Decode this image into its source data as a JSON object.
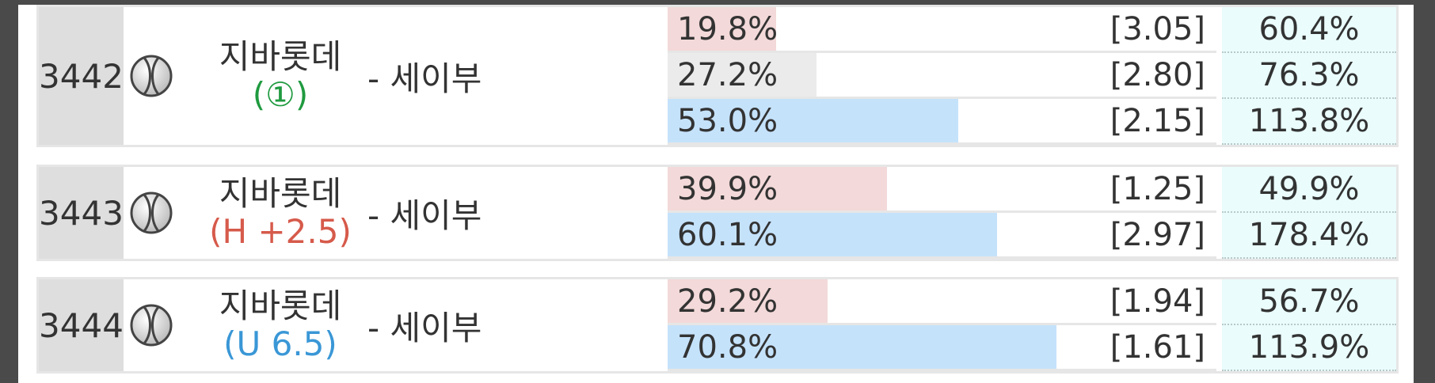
{
  "games": [
    {
      "id": "3442",
      "home": "지바롯데",
      "tag": "(①)",
      "tag_color": "#1f9a3f",
      "away": "- 세이부",
      "outcomes": [
        {
          "pct": 19.8,
          "pct_label": "19.8%",
          "color": "#f3d9d9",
          "odds": "[3.05]",
          "return": "60.4%"
        },
        {
          "pct": 27.2,
          "pct_label": "27.2%",
          "color": "#ebebeb",
          "odds": "[2.80]",
          "return": "76.3%"
        },
        {
          "pct": 53.0,
          "pct_label": "53.0%",
          "color": "#c5e2fb",
          "odds": "[2.15]",
          "return": "113.8%"
        }
      ]
    },
    {
      "id": "3443",
      "home": "지바롯데",
      "tag": "(H +2.5)",
      "tag_color": "#d65a4b",
      "away": "- 세이부",
      "outcomes": [
        {
          "pct": 39.9,
          "pct_label": "39.9%",
          "color": "#f3d9d9",
          "odds": "[1.25]",
          "return": "49.9%"
        },
        {
          "pct": 60.1,
          "pct_label": "60.1%",
          "color": "#c5e2fb",
          "odds": "[2.97]",
          "return": "178.4%"
        }
      ]
    },
    {
      "id": "3444",
      "home": "지바롯데",
      "tag": "(U 6.5)",
      "tag_color": "#3a97d6",
      "away": "- 세이부",
      "outcomes": [
        {
          "pct": 29.2,
          "pct_label": "29.2%",
          "color": "#f3d9d9",
          "odds": "[1.94]",
          "return": "56.7%"
        },
        {
          "pct": 70.8,
          "pct_label": "70.8%",
          "color": "#c5e2fb",
          "odds": "[1.61]",
          "return": "113.9%"
        }
      ]
    }
  ]
}
